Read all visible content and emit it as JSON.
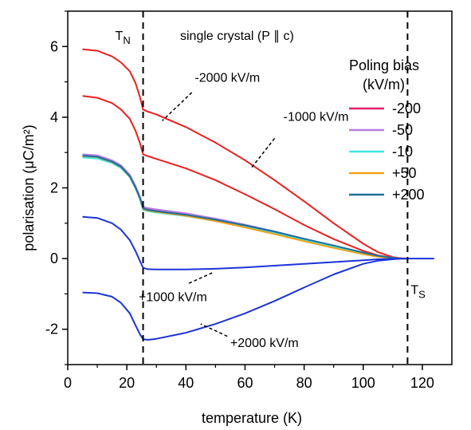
{
  "chart_data": {
    "type": "line",
    "title": "single crystal (P ∥ c)",
    "xlabel": "temperature (K)",
    "ylabel": "polarisation (μC/m²)",
    "xlim": [
      0,
      130
    ],
    "ylim": [
      -3,
      7
    ],
    "xticks": [
      "0",
      "20",
      "40",
      "60",
      "80",
      "100",
      "120"
    ],
    "yticks": [
      "-2",
      "0",
      "2",
      "4",
      "6"
    ],
    "grid": false,
    "legend_placement": "right",
    "legend_title": "Poling bias (kV/m)",
    "vertical_markers": [
      {
        "name": "T_N",
        "x": 25.5,
        "label": "TN"
      },
      {
        "name": "T_S",
        "x": 115,
        "label": "TS"
      }
    ],
    "series": [
      {
        "name": "-2000 kV/m",
        "color": "#e8211f",
        "in_legend": false,
        "x": [
          5,
          10,
          15,
          18,
          21,
          23,
          24.5,
          25.5,
          27,
          30,
          40,
          50,
          60,
          70,
          80,
          90,
          100,
          105,
          110,
          113,
          115
        ],
        "y": [
          5.92,
          5.88,
          5.72,
          5.55,
          5.3,
          4.95,
          4.55,
          4.22,
          4.16,
          4.08,
          3.72,
          3.28,
          2.78,
          2.22,
          1.62,
          1.0,
          0.42,
          0.18,
          0.04,
          0.01,
          0.0
        ]
      },
      {
        "name": "-1000 kV/m",
        "color": "#e8211f",
        "in_legend": false,
        "x": [
          5,
          10,
          15,
          18,
          21,
          23,
          24.5,
          25.5,
          27,
          30,
          40,
          50,
          60,
          70,
          80,
          90,
          100,
          105,
          110,
          113,
          115
        ],
        "y": [
          4.6,
          4.55,
          4.4,
          4.22,
          3.95,
          3.6,
          3.25,
          2.95,
          2.9,
          2.82,
          2.55,
          2.22,
          1.82,
          1.4,
          0.95,
          0.55,
          0.22,
          0.09,
          0.02,
          0.0,
          0.0
        ]
      },
      {
        "name": "-200",
        "color": "#e31e6a",
        "in_legend": true,
        "x": [
          5,
          10,
          15,
          18,
          21,
          23,
          24.5,
          25.5,
          27,
          30,
          40,
          50,
          60,
          70,
          80,
          90,
          100,
          105,
          110,
          113,
          115
        ],
        "y": [
          2.93,
          2.9,
          2.76,
          2.62,
          2.35,
          2.02,
          1.72,
          1.45,
          1.41,
          1.37,
          1.26,
          1.11,
          0.94,
          0.76,
          0.56,
          0.36,
          0.16,
          0.07,
          0.02,
          0.0,
          0.0
        ]
      },
      {
        "name": "-50",
        "color": "#b57ee0",
        "in_legend": true,
        "x": [
          5,
          10,
          15,
          18,
          21,
          23,
          24.5,
          25.5,
          27,
          30,
          40,
          50,
          60,
          70,
          80,
          90,
          100,
          105,
          110,
          113,
          115
        ],
        "y": [
          2.95,
          2.92,
          2.78,
          2.64,
          2.37,
          2.04,
          1.74,
          1.47,
          1.43,
          1.39,
          1.28,
          1.13,
          0.96,
          0.77,
          0.56,
          0.36,
          0.16,
          0.07,
          0.02,
          0.0,
          0.0
        ]
      },
      {
        "name": "-10",
        "color": "#3ae8e6",
        "in_legend": true,
        "x": [
          5,
          10,
          15,
          18,
          21,
          23,
          24.5,
          25.5,
          27,
          30,
          40,
          50,
          60,
          70,
          80,
          90,
          100,
          105,
          110,
          113,
          115
        ],
        "y": [
          2.86,
          2.83,
          2.7,
          2.56,
          2.3,
          1.97,
          1.67,
          1.38,
          1.34,
          1.3,
          1.2,
          1.06,
          0.9,
          0.72,
          0.52,
          0.33,
          0.14,
          0.06,
          0.02,
          0.0,
          0.0
        ]
      },
      {
        "name": "+50",
        "color": "#f3a31a",
        "in_legend": true,
        "x": [
          5,
          10,
          15,
          18,
          21,
          23,
          24.5,
          25.5,
          27,
          30,
          40,
          50,
          60,
          70,
          80,
          90,
          100,
          105,
          110,
          113,
          115
        ],
        "y": [
          2.9,
          2.87,
          2.73,
          2.59,
          2.32,
          1.99,
          1.69,
          1.4,
          1.36,
          1.32,
          1.21,
          1.06,
          0.88,
          0.69,
          0.49,
          0.3,
          0.12,
          0.05,
          0.01,
          0.0,
          0.0
        ]
      },
      {
        "name": "+200",
        "color": "#1f6e9c",
        "in_legend": true,
        "x": [
          5,
          10,
          15,
          18,
          21,
          23,
          24.5,
          25.5,
          27,
          30,
          40,
          50,
          60,
          70,
          80,
          90,
          100,
          105,
          110,
          113,
          115
        ],
        "y": [
          2.91,
          2.88,
          2.74,
          2.6,
          2.33,
          2.0,
          1.7,
          1.42,
          1.38,
          1.34,
          1.24,
          1.1,
          0.94,
          0.76,
          0.56,
          0.37,
          0.17,
          0.08,
          0.02,
          0.0,
          0.0
        ]
      },
      {
        "name": "+1000 kV/m",
        "color": "#1d34d8",
        "in_legend": false,
        "x": [
          5,
          10,
          15,
          18,
          21,
          23,
          24.5,
          25.5,
          27,
          30,
          40,
          50,
          60,
          70,
          80,
          90,
          100,
          105,
          110,
          113,
          115,
          120,
          124
        ],
        "y": [
          1.18,
          1.15,
          1.0,
          0.82,
          0.52,
          0.2,
          -0.08,
          -0.26,
          -0.3,
          -0.31,
          -0.31,
          -0.29,
          -0.25,
          -0.2,
          -0.15,
          -0.1,
          -0.05,
          -0.02,
          -0.01,
          0.0,
          0.0,
          0.0,
          0.0
        ]
      },
      {
        "name": "+2000 kV/m",
        "color": "#1d34d8",
        "in_legend": false,
        "x": [
          5,
          10,
          15,
          18,
          21,
          23,
          24.5,
          25.5,
          27,
          30,
          40,
          50,
          60,
          70,
          80,
          90,
          100,
          105,
          110,
          113,
          115
        ],
        "y": [
          -0.96,
          -0.98,
          -1.08,
          -1.25,
          -1.55,
          -1.9,
          -2.15,
          -2.28,
          -2.3,
          -2.27,
          -2.1,
          -1.85,
          -1.55,
          -1.2,
          -0.82,
          -0.45,
          -0.15,
          -0.06,
          -0.02,
          0.0,
          0.0
        ]
      }
    ],
    "annotations": [
      {
        "text": "-2000 kV/m",
        "x": 43,
        "y": 5.0,
        "pointer": [
          [
            42,
            4.7
          ],
          [
            32,
            3.9
          ]
        ]
      },
      {
        "text": "-1000 kV/m",
        "x": 73,
        "y": 3.9,
        "pointer": [
          [
            70,
            3.4
          ],
          [
            62,
            2.55
          ]
        ]
      },
      {
        "text": "+1000 kV/m",
        "x": 24,
        "y": -1.2,
        "pointer": [
          [
            41,
            -0.7
          ],
          [
            49,
            -0.4
          ]
        ]
      },
      {
        "text": "+2000 kV/m",
        "x": 55,
        "y": -2.5,
        "pointer": [
          [
            54,
            -2.2
          ],
          [
            45,
            -1.85
          ]
        ]
      }
    ]
  }
}
